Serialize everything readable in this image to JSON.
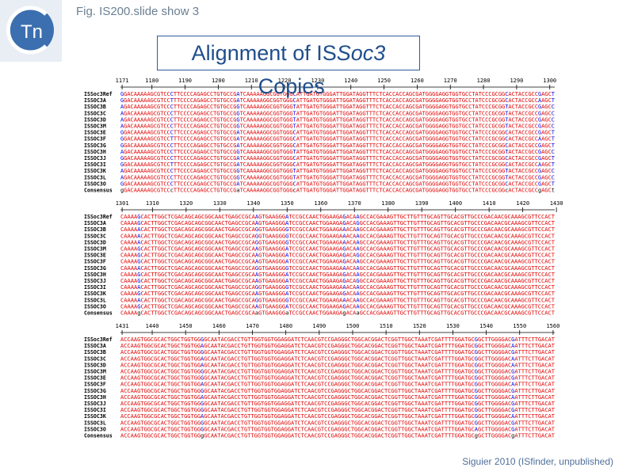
{
  "header": {
    "caption": "Fig. IS200.slide show 3",
    "logo": "Tn",
    "title_prefix": "Alignment of IS",
    "title_italic": "Soc3",
    "title_suffix": " Copies"
  },
  "alignment": {
    "names": [
      "ISSoc3Ref",
      "ISSOC3A",
      "ISSOC3B",
      "ISSOC3C",
      "ISSOC3D",
      "ISSOC3M",
      "ISSOC3E",
      "ISSOC3F",
      "ISSOC3G",
      "ISSOC3H",
      "ISSOC3J",
      "ISSOC3I",
      "ISSOC3K",
      "ISSOC3L",
      "ISSOC3O",
      "Consensus"
    ],
    "blocks": [
      {
        "ruler": [
          1171,
          1180,
          1190,
          1200,
          1210,
          1220,
          1230,
          1240,
          1250,
          1260,
          1270,
          1280,
          1290,
          1300
        ],
        "rows": [
          "GGACAAAAAGCGTCCCTTCCCCAGAGCCTGTGCCGATCAAAAAGGCGGTGGGCATTGATGTGGGATTGGATAGGTTTCTCACCACCAGCGATGGGGAGGTGGTGCCTATCCCGCGGCACTACCGCCGAGCT",
          "GGACAAAAAGCGTCCTTTCCCCAGAGCCTGTGCCGATCAAAAAGGCGGTGGGCATTGATGTGGGATTGGATAGGTTTCTCACCACCAGCGATGGGGAGGTGGTGCCTATCCCGCGGCACTACCGCCAAGCT",
          "AGACAAAAAGCGTCCCTTCCCCAGAGCCTGTGCCGGTCAAAAAGGCGGTGGGTATTGATGTGGGATTGGATAGGTTTCTCACCACCAGCGATGGGGAGGTGGTGCCTATCCCGCGGTACTACCGCCGAGCC",
          "AGACAAAAAGCGTCCCTTCCCCAGAGCCTGTGCCGGTCAAAAAGGCGGTGGGTATTGATGTGGGATTGGATAGGTTTCTCACCACCAGCGATGGGGAGGTGGTGCCTATCCCGCGGTACTACCGCCGAGCC",
          "AGACAAAAAGCGTCCCTTCCCCAGAGCCTGTGCCGGTCAAAAAGGCGGTGGGTATTGATGTGGGATTGGATAGGTTTCTCACCACCAGCGATGGGGAGGTGGTGCCTATCCCGCGGTACTACCGCCGAGCC",
          "AGACAAAAAGCGTCCCTTCCCCAGAGCCTGTGCCGGTCAAAAAGGCGGTGGGTATTGATGTGGGATTGGATAGGTTTCTCACCACCAGCGATGGGGAGGTGGTGCCTATCCCGCGGTACTACCGCCGAGCC",
          "GGACAAAAAGCGTCCCTTCCCCAGAGCCTGTGCCGATCAAAAAGGCGGTGGGCATTGATGTGGGATTGGATAGGTTTCTCACCACCAGCGATGGGGAGGTGGTGCCTATCCCGCGGCACTACCGCCGAGCT",
          "GGACAAAAAGCGTCCTTTCCCCAGAGCCTGTGCCGATCAAAAAGGCGGTGGGCATTGATGTGGGATTGGATAGGTTTCTCACCACCAGCGATGGGGAGGTGGTGCCTATCCCGCGGCACTACCGCCAAGCT",
          "GGACAAAAAGCGTCCCTTCCCCAGAGCCTGTGCCGATCAAAAAGGCGGTGGGCATTGATGTGGGATTGGATAGGTTTCTCACCACCAGCGATGGGGAGGTGGTGCCTATCCCGCGGCACTACCGCCGAGCT",
          "AGACAAAAAGCGTCCCTTCCCCAGAGCCTGTGCCGGTCAAAAAGGCGGTGGGTATTGATGTGGGATTGGATAGGTTTCTCACCACCAGCGATGGGGAGGTGGTGCCTATCCCGCGGTACTACCGCCGAGCC",
          "GGACAAAAAGCGTCCCTTCCCCAGAGCCTGTGCCGATCAAAAAGGCGGTGGGCATTGATGTGGGATTGGATAGGTTTCTCACCACCAGCGATGGGGAGGTGGTGCCTATCCCGCGGCACTACCGCCGAGCT",
          "GGACAAAAAGCGTCCTTTCCCCAGAGCCTGTGCCGATCAAAAAGGCGGTGGGCATTGATGTGGGATTGGATAGGTTTCTCACCACCAGCGATGGGGAGGTGGTGCCTATCCCGCGGCACTACCGCCAAGCT",
          "AGACAAAAAGCGTCCCTTCCCCAGAGCCTGTGCCGGTCAAAAAGGCGGTGGGTATTGATGTGGGATTGGATAGGTTTCTCACCACCAGCGATGGGGAGGTGGTGCCTATCCCGCGGTACTACCGCCGAGCC",
          "AGACAAAAAGCGTCCCTTCCCCAGAGCCTGTGCCGGTCAAAAAGGCGGTGGGTATTGATGTGGGATTGGATAGGTTTCTCACCACCAGCGATGGGGAGGTGGTGCCTATCCCGCGGTACTACCGCCGAGCC",
          "GGACAAAAAGCGTCCCTTCCCCAGAGCCTGTGCCGATCAAAAAGGCGGTGGGCATTGATGTGGGATTGGATAGGTTTCTCACCACCAGCGATGGGGAGGTGGTGCCTATCCCGCGGCACTACCGCCGAGCT",
          "gGACAAAAAGCGTCCcTTCCCCAGAGCCTGTGCCGaTCAAAAAGGCGGTGGGcATTGATGTGGGATTGGATAGGTTTCTCACCACCAGCGATGGGGAGGTGGTGCCTATCCCGCGGcACTACCGCCgAGCt"
        ]
      },
      {
        "ruler": [
          1301,
          1310,
          1320,
          1330,
          1340,
          1350,
          1360,
          1370,
          1380,
          1390,
          1400,
          1410,
          1420,
          1430
        ],
        "rows": [
          "CAAAAGCACTTGGCTCGACAGCAGCGGCAACTGAGCCGCAAGTGAAGGGATCCGCCAACTGGAAGAGACAAGCCACGAAAGTTGCTTGTTTGCAGTTGCACGTTGCCCGACAACGCAAAGCGTTCCACT",
          "CAAAAGCACTTGGCTCGACAGCAGCGGCAACTGAGCCGCAAGTGAAGGGATCCGCCAACTGGAAGAGACAGGCCACGAAAGTTGCTTGTTTGCAGTTGCACGTTGCCCGACAACGCAAAGCGTTCCACT",
          "CAAAAACACTTGGCTCGACAGCAGCGGCAACTGAGCCGCAGGTGAAGGGGTCCGCCAACTGGAAGAAACAAGCCACGAAAGTTGCTTGTTTGCAGTTGCACGTTGCCCGACAACGCAAAGCGTTCCACT",
          "CAAAAACACTTGGCTCGACAGCAGCGGCAACTGAGCCGCAGGTGAAGGGGTCCGCCAACTGGAAGAAACAAGCCACGAAAGTTGCTTGTTTGCAGTTGCACGTTGCCCGACAACGCAAAGCGTTCCACT",
          "CAAAAACACTTGGCTCGACAGCAGCGGCAACTGAGCCGCAGGTGAAGGGGTCCGCCAACTGGAAGAAACAAGCCACGAAAGTTGCTTGTTTGCAGTTGCACGTTGCCCGACAACGCAAAGCGTTCCACT",
          "CAAAAGCACTTGGCTCGACAGCAGCGGCAACTGAGCCGCAAGTGAAGGGATCCGCCAACTGGAAGAGACAAGCCACGAAAGTTGCTTGTTTGCAGTTGCACGTTGCCCGACAACGCAAAGCGTTCCACT",
          "CAAAAGCACTTGGCTCGACAGCAGCGGCAACTGAGCCGCAAGTGAAGGGATCCGCCAACTGGAAGAGACAGGCCACGAAAGTTGCTTGTTTGCAGTTGCACGTTGCCCGACAACGCAAAGCGTTCCACT",
          "CAAAAGCACTTGGCTCGACAGCAGCGGCAACTGAGCCGCAAGTGAAGGGATCCGCCAACTGGAAGAGACAAGCCACGAAAGTTGCTTGTTTGCAGTTGCACGTTGCCCGACAACGCAAAGCGTTCCACT",
          "CAAAAACACTTGGCTCGACAGCAGCGGCAACTGAGCCGCAGGTGAAGGGGTCCGCCAACTGGAAGAAACAAGCCACGAAAGTTGCTTGTTTGCAGTTGCACGTTGCCCGACAACGCAAAGCGTTCCACT",
          "CAAAAGCACTTGGCTCGACAGCAGCGGCAACTGAGCCGCAAGTGAAGGGATCCGCCAACTGGAAGAGACAAGCCACGAAAGTTGCTTGTTTGCAGTTGCACGTTGCCCGACAACGCAAAGCGTTCCACT",
          "CAAAAGCACTTGGCTCGACAGCAGCGGCAACTGAGCCGCAAGTGAAGGGATCCGCCAACTGGAAGAGACAGGCCACGAAAGTTGCTTGTTTGCAGTTGCACGTTGCCCGACAACGCAAAGCGTTCCACT",
          "CAAAAACACTTGGCTCGACAGCAGCGGCAACTGAGCCGCAGGTGAAGGGGTCCGCCAACTGGAAGAAACAAGCCACGAAAGTTGCTTGTTTGCAGTTGCACGTTGCCCGACAACGCAAAGCGTTCCACT",
          "CAAAAGCACTTGGCTCGACAGCAGCGGCAACTGAGCCGCAAGTGAAGGGATCCGCCAACTGGAAGAGACAAGCCACGAAAGTTGCTTGTTTGCAGTTGCACGTTGCCCGACAACGCAAAGCGTTCCACT",
          "CAAAAACACTTGGCTCGACAGCAGCGGCAACTGAGCCGCAGGTGAAGGGGTCCGCCAACTGGAAGAAACAAGCCACGAAAGTTGCTTGTTTGCAGTTGCACGTTGCCCGACAACGCAAAGCGTTCCACT",
          "CAAAAGCACTTGGCTCGACAGCAGCGGCAACTGAGCCGCAAGTGAAGGGATCCGCCAACTGGAAGAGACAAGCCACGAAAGTTGCTTGTTTGCAGTTGCACGTTGCCCGACAACGCAAAGCGTTCCACT",
          "CAAAAgCACTTGGCTCGACAGCAGCGGCAACTGAGCCGCAaGTGAAGGGaTCCGCCAACTGGAAGAgACAaGCCACGAAAGTTGCTTGTTTGCAGTTGCACGTTGCCCGACAACGCAAAGCGTTCCACT"
        ]
      },
      {
        "ruler": [
          1431,
          1440,
          1450,
          1460,
          1470,
          1480,
          1490,
          1500,
          1510,
          1520,
          1530,
          1540,
          1550,
          1560
        ],
        "rows": [
          "ACCAAGTGGCGCACTGGCTGGTGGGGCAATACGACCTGTTGGTGGTGGAGGATCTCAACGTCCGAGGGCTGGCACGGACTCGGTTGGCTAAATCGATTTTGGATGCGGCTTGGGGACGATTTCTTGACAT",
          "ACCAAGTGGCGCACTGGCTGGTGGAGCAATACGACCTGTTGGTGGTGGAGGATCTCAACGTCCGAGGGCTGGCACGGACTCGGTTGGCTAAATCGATTTTGGATGCGGCTTGGGGACAATTTCTTGACAT",
          "ACCAAGTGGCGCACTGGCTGGTGGGGCAATACGACCTGTTGGTGGTGGAGGATCTCAACGTCCGAGGGCTGGCACGGACTCGGTTGGCTAAATCGATTTTGGATGCGGCTTGGGGACGATTTCTTGACAT",
          "ACCAAGTGGCGCACTGGCTGGTGGAGCAATACGACCTGTTGGTGGTGGAGGATCTCAACGTCCGAGGGCTGGCACGGACTCGGTTGGCTAAATCGATTTTGGATGCGGCTTGGGGACAATTTCTTGACAT",
          "ACCAAGTGGCGCACTGGCTGGTGGAGCAATACGACCTGTTGGTGGTGGAGGATCTCAACGTCCGAGGGCTGGCACGGACTCGGTTGGCTAAATCGATTTTGGATGCGGCTTGGGGACAATTTCTTGACAT",
          "ACCAAGTGGCGCACTGGCTGGTGGGGCAATACGACCTGTTGGTGGTGGAGGATCTCAACGTCCGAGGGCTGGCACGGACTCGGTTGGCTAAATCGATTTTGGATGCGGCTTGGGGACGATTTCTTGACAT",
          "ACCAAGTGGCGCACTGGCTGGTGGGGCAATACGACCTGTTGGTGGTGGAGGATCTCAACGTCCGAGGGCTGGCACGGACTCGGTTGGCTAAATCGATTTTGGATGCGGCTTGGGGACGATTTCTTGACAT",
          "ACCAAGTGGCGCACTGGCTGGTGGAGCAATACGACCTGTTGGTGGTGGAGGATCTCAACGTCCGAGGGCTGGCACGGACTCGGTTGGCTAAATCGATTTTGGATGCGGCTTGGGGACAATTTCTTGACAT",
          "ACCAAGTGGCGCACTGGCTGGTGGGGCAATACGACCTGTTGGTGGTGGAGGATCTCAACGTCCGAGGGCTGGCACGGACTCGGTTGGCTAAATCGATTTTGGATGCGGCTTGGGGACGATTTCTTGACAT",
          "ACCAAGTGGCGCACTGGCTGGTGGAGCAATACGACCTGTTGGTGGTGGAGGATCTCAACGTCCGAGGGCTGGCACGGACTCGGTTGGCTAAATCGATTTTGGATGCGGCTTGGGGACAATTTCTTGACAT",
          "ACCAAGTGGCGCACTGGCTGGTGGGGCAATACGACCTGTTGGTGGTGGAGGATCTCAACGTCCGAGGGCTGGCACGGACTCGGTTGGCTAAATCGATTTTGGATGCGGCTTGGGGACGATTTCTTGACAT",
          "ACCAAGTGGCGCACTGGCTGGTGGGGCAATACGACCTGTTGGTGGTGGAGGATCTCAACGTCCGAGGGCTGGCACGGACTCGGTTGGCTAAATCGATTTTGGATGCGGCTTGGGGACGATTTCTTGACAT",
          "ACCAAGTGGCGCACTGGCTGGTGGAGCAATACGACCTGTTGGTGGTGGAGGATCTCAACGTCCGAGGGCTGGCACGGACTCGGTTGGCTAAATCGATTTTGGATGCGGCTTGGGGACAATTTCTTGACAT",
          "ACCAAGTGGCGCACTGGCTGGTGGGGCAATACGACCTGTTGGTGGTGGAGGATCTCAACGTCCGAGGGCTGGCACGGACTCGGTTGGCTAAATCGATTTTGGATGCGGCTTGGGGACGATTTCTTGACAT",
          "ACCAAGTGGCGCACTGGCTGGTGGGGCAATACGACCTGTTGGTGGTGGAGGATCTCAACGTCCGAGGGCTGGCACGGACTCGGTTGGCTAAATCGATTTTGGATGCAGCTTGGGGACGATTTCTTGACAT",
          "ACCAAGTGGCGCACTGGCTGGTGGgGCAATACGACCTGTTGGTGGTGGAGGATCTCAACGTCCGAGGGCTGGCACGGACTCGGTTGGCTAAATCGATTTTGGATGCgGCTTGGGGACgATTTCTTGACAT"
        ]
      }
    ]
  },
  "footer": {
    "credit": "Siguier 2010 (ISfinder, unpublished)"
  }
}
